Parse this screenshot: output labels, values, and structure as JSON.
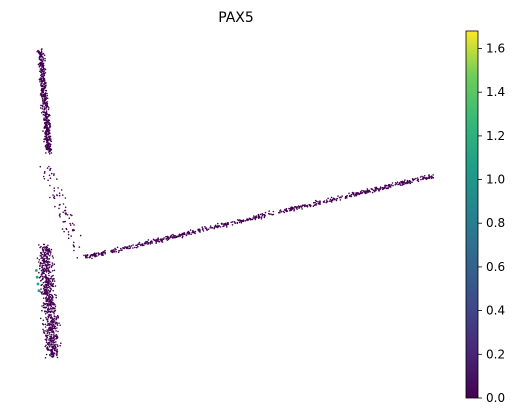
{
  "chart_data": {
    "type": "scatter",
    "title": "PAX5",
    "xlabel": "",
    "ylabel": "",
    "axes_visible": false,
    "grid": false,
    "legend": "none",
    "colormap": "viridis",
    "colorbar": {
      "position": "right",
      "range": [
        0,
        1.68
      ],
      "ticks": [
        0.0,
        0.2,
        0.4,
        0.6,
        0.8,
        1.0,
        1.2,
        1.4,
        1.6
      ],
      "tick_labels": [
        "0.0",
        "0.2",
        "0.4",
        "0.6",
        "0.8",
        "1.0",
        "1.2",
        "1.4",
        "1.6"
      ]
    },
    "xlim": [
      0,
      100
    ],
    "ylim": [
      0,
      100
    ],
    "point_color_default": "#440154",
    "point_color_high": "#21a685",
    "structures": [
      {
        "name": "top-strand",
        "from": [
          3,
          98
        ],
        "to": [
          5,
          68
        ],
        "spread": 1.2,
        "n": 500
      },
      {
        "name": "bottom-cluster",
        "from": [
          4,
          40
        ],
        "to": [
          6,
          8
        ],
        "spread": 2.5,
        "n": 700
      },
      {
        "name": "long-arm",
        "from": [
          14,
          37
        ],
        "to": [
          97,
          61
        ],
        "spread": 1.0,
        "n": 700
      },
      {
        "name": "sparse-bridge",
        "from": [
          4,
          65
        ],
        "to": [
          12,
          38
        ],
        "spread": 2.5,
        "n": 80
      }
    ],
    "high_expression_points": [
      {
        "x": 2.2,
        "y": 31,
        "v": 1.0
      },
      {
        "x": 2.4,
        "y": 29,
        "v": 0.9
      },
      {
        "x": 2.0,
        "y": 33,
        "v": 0.8
      },
      {
        "x": 2.6,
        "y": 27,
        "v": 1.1
      }
    ]
  }
}
